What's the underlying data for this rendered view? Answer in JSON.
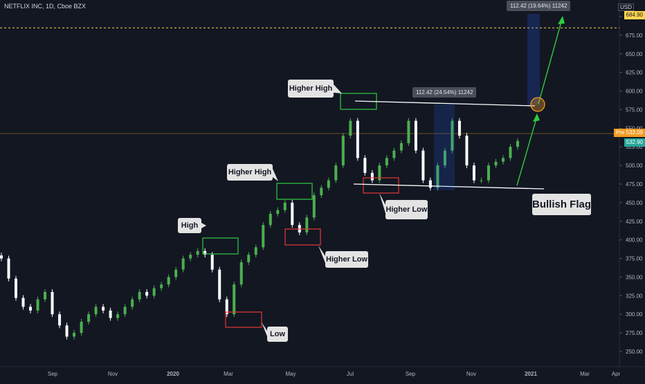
{
  "header": {
    "symbol_title": "NETFLIX INC, 1D, Cboe BZX",
    "currency": "USD"
  },
  "price_axis": {
    "ticks": [
      "700.00",
      "675.00",
      "650.00",
      "625.00",
      "600.00",
      "575.00",
      "550.00",
      "525.00",
      "500.00",
      "475.00",
      "450.00",
      "425.00",
      "400.00",
      "375.00",
      "350.00",
      "325.00",
      "300.00",
      "275.00",
      "250.00"
    ],
    "badges": {
      "target": {
        "label": "684.90",
        "color": "#ffd54f"
      },
      "pre": {
        "prefix": "Pre",
        "label": "533.09",
        "color": "#f39b22"
      },
      "last": {
        "label": "532.90",
        "color": "#26a69a"
      }
    }
  },
  "time_axis": {
    "ticks": [
      "Sep",
      "Nov",
      "2020",
      "Mar",
      "May",
      "Jul",
      "Sep",
      "Nov",
      "2021",
      "Mar",
      "Apr"
    ]
  },
  "annotations": {
    "high": "High",
    "low": "Low",
    "higher_high_1": "Higher High",
    "higher_low_1": "Higher Low",
    "higher_high_2": "Higher High",
    "higher_low_2": "Higher Low",
    "bullish_flag": "Bullish Flag",
    "measure_1": "112.42 (24.54%) 11242",
    "measure_2": "112.42 (19.64%) 11242"
  },
  "colors": {
    "background": "#131722",
    "up_candle": "#4caf50",
    "down_candle": "#ffffff",
    "green_box": "#2ecc40",
    "red_box": "#e53935",
    "projection": "#2ecc40",
    "trendline": "#ffffff",
    "target_line": "#ffd54f",
    "current_line": "#f39b22"
  },
  "chart_data": {
    "type": "candlestick",
    "x_range": [
      "2019-08",
      "2021-04"
    ],
    "ylim": [
      240,
      700
    ],
    "series": [
      {
        "name": "",
        "close": [
          375,
          348,
          322,
          310,
          305,
          320,
          330,
          300,
          285,
          270,
          275,
          290,
          300,
          310,
          305,
          295,
          300,
          310,
          320,
          330,
          325,
          335,
          340,
          350,
          360,
          375,
          380,
          385,
          380,
          360,
          320,
          300,
          340,
          370,
          380,
          390,
          420,
          435,
          440,
          450,
          420,
          410,
          430,
          460,
          470,
          480,
          500,
          540,
          560,
          510,
          490,
          480,
          500,
          510,
          520,
          530,
          560,
          520,
          480,
          470,
          500,
          520,
          560,
          540,
          500,
          480,
          480,
          500,
          505,
          510,
          525,
          533
        ]
      }
    ],
    "flag": {
      "upper": [
        577,
        568
      ],
      "lower": [
        466,
        460
      ]
    },
    "target_price": 684.9
  }
}
